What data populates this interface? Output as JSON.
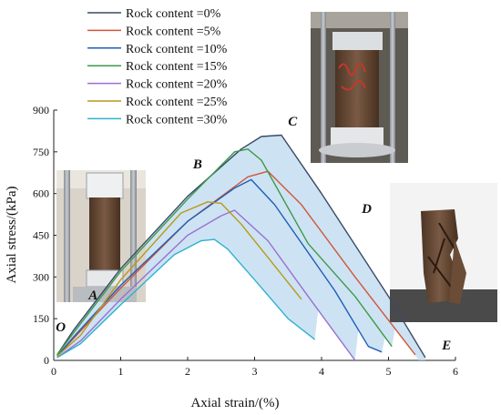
{
  "chart_data": {
    "type": "line",
    "xlabel": "Axial strain/(%)",
    "ylabel": "Axial stress/(kPa)",
    "xlim": [
      0,
      6
    ],
    "ylim": [
      0,
      900
    ],
    "x_ticks": [
      "0",
      "1",
      "2",
      "3",
      "4",
      "5",
      "6"
    ],
    "y_ticks": [
      "0",
      "150",
      "300",
      "450",
      "600",
      "750",
      "900"
    ],
    "x_tick_values": [
      0,
      1,
      2,
      3,
      4,
      5,
      6
    ],
    "y_tick_values": [
      0,
      150,
      300,
      450,
      600,
      750,
      900
    ],
    "legend_position": "top-left",
    "band_fill": "#bcd9ef",
    "series": [
      {
        "name": "Rock content =0%",
        "color": "#3a4a66",
        "x": [
          0.05,
          0.3,
          1.0,
          2.0,
          2.8,
          3.1,
          3.4,
          4.0,
          5.0,
          5.55
        ],
        "y": [
          20,
          110,
          330,
          590,
          760,
          805,
          810,
          600,
          230,
          10
        ]
      },
      {
        "name": "Rock content =5%",
        "color": "#d2553a",
        "x": [
          0.05,
          0.3,
          1.0,
          2.0,
          2.9,
          3.2,
          3.7,
          4.5,
          5.4
        ],
        "y": [
          15,
          80,
          260,
          500,
          660,
          680,
          560,
          300,
          20
        ]
      },
      {
        "name": "Rock content =10%",
        "color": "#1f5fb8",
        "x": [
          0.05,
          0.3,
          1.0,
          2.0,
          2.7,
          2.95,
          3.3,
          4.2,
          4.7,
          4.9
        ],
        "y": [
          15,
          85,
          270,
          500,
          620,
          650,
          560,
          250,
          50,
          30
        ]
      },
      {
        "name": "Rock content =15%",
        "color": "#3f9a4a",
        "x": [
          0.05,
          0.3,
          1.0,
          2.0,
          2.7,
          2.9,
          3.1,
          3.8,
          4.5,
          5.05
        ],
        "y": [
          20,
          100,
          320,
          580,
          750,
          760,
          720,
          420,
          230,
          50
        ]
      },
      {
        "name": "Rock content =20%",
        "color": "#9b6fd1",
        "x": [
          0.05,
          0.4,
          1.0,
          2.0,
          2.5,
          2.7,
          3.2,
          3.8,
          4.5
        ],
        "y": [
          10,
          70,
          220,
          450,
          520,
          540,
          430,
          230,
          0
        ]
      },
      {
        "name": "Rock content =25%",
        "color": "#b79a1a",
        "x": [
          0.05,
          0.4,
          1.0,
          1.9,
          2.3,
          2.5,
          2.8,
          3.3,
          3.7
        ],
        "y": [
          15,
          90,
          290,
          530,
          570,
          565,
          490,
          340,
          220
        ]
      },
      {
        "name": "Rock content =30%",
        "color": "#2db2cf",
        "x": [
          0.05,
          0.4,
          1.0,
          1.8,
          2.2,
          2.4,
          2.6,
          3.0,
          3.5,
          3.9
        ],
        "y": [
          10,
          60,
          200,
          380,
          430,
          435,
          400,
          290,
          150,
          75
        ]
      }
    ],
    "annotations": [
      {
        "text": "O",
        "x": 0.03,
        "y": 105
      },
      {
        "text": "A",
        "x": 0.52,
        "y": 220
      },
      {
        "text": "B",
        "x": 2.08,
        "y": 690
      },
      {
        "text": "C",
        "x": 3.5,
        "y": 845
      },
      {
        "text": "D",
        "x": 4.6,
        "y": 530
      },
      {
        "text": "E",
        "x": 5.8,
        "y": 40
      }
    ],
    "photos": [
      {
        "name": "photo-sample-in-triaxial-cell",
        "stage": "start"
      },
      {
        "name": "photo-sample-at-peak-stress",
        "stage": "peak"
      },
      {
        "name": "photo-failed-sample",
        "stage": "end"
      }
    ]
  }
}
